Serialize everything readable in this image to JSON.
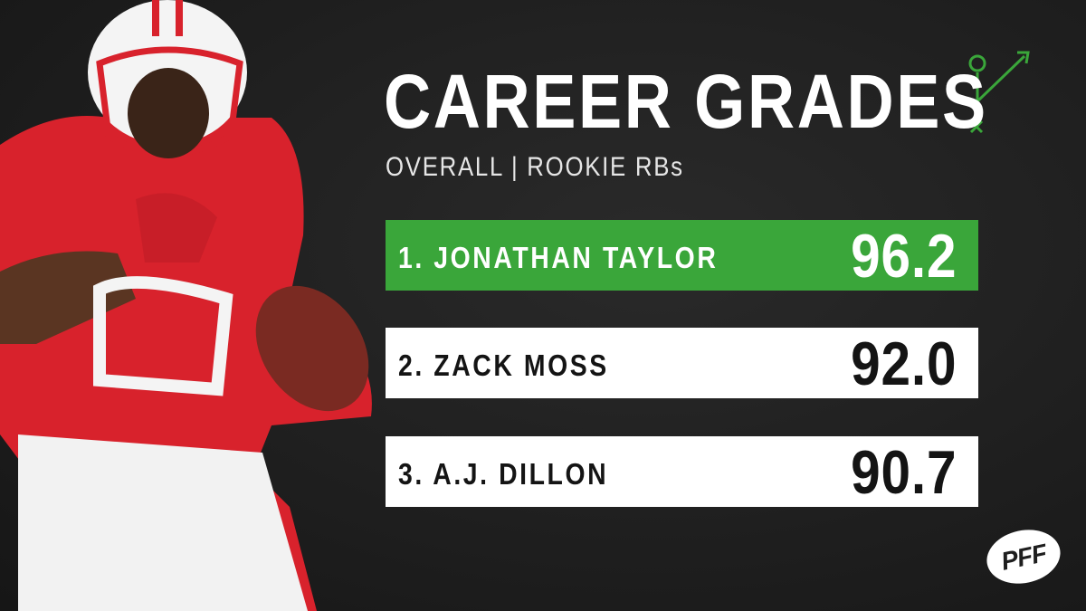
{
  "header": {
    "title": "CAREER GRADES",
    "subtitle": "OVERALL | ROOKIE RBs"
  },
  "rows": [
    {
      "label": "1. JONATHAN TAYLOR",
      "grade": "96.2"
    },
    {
      "label": "2. ZACK MOSS",
      "grade": "92.0"
    },
    {
      "label": "3. A.J. DILLON",
      "grade": "90.7"
    }
  ],
  "logo": "PFF"
}
